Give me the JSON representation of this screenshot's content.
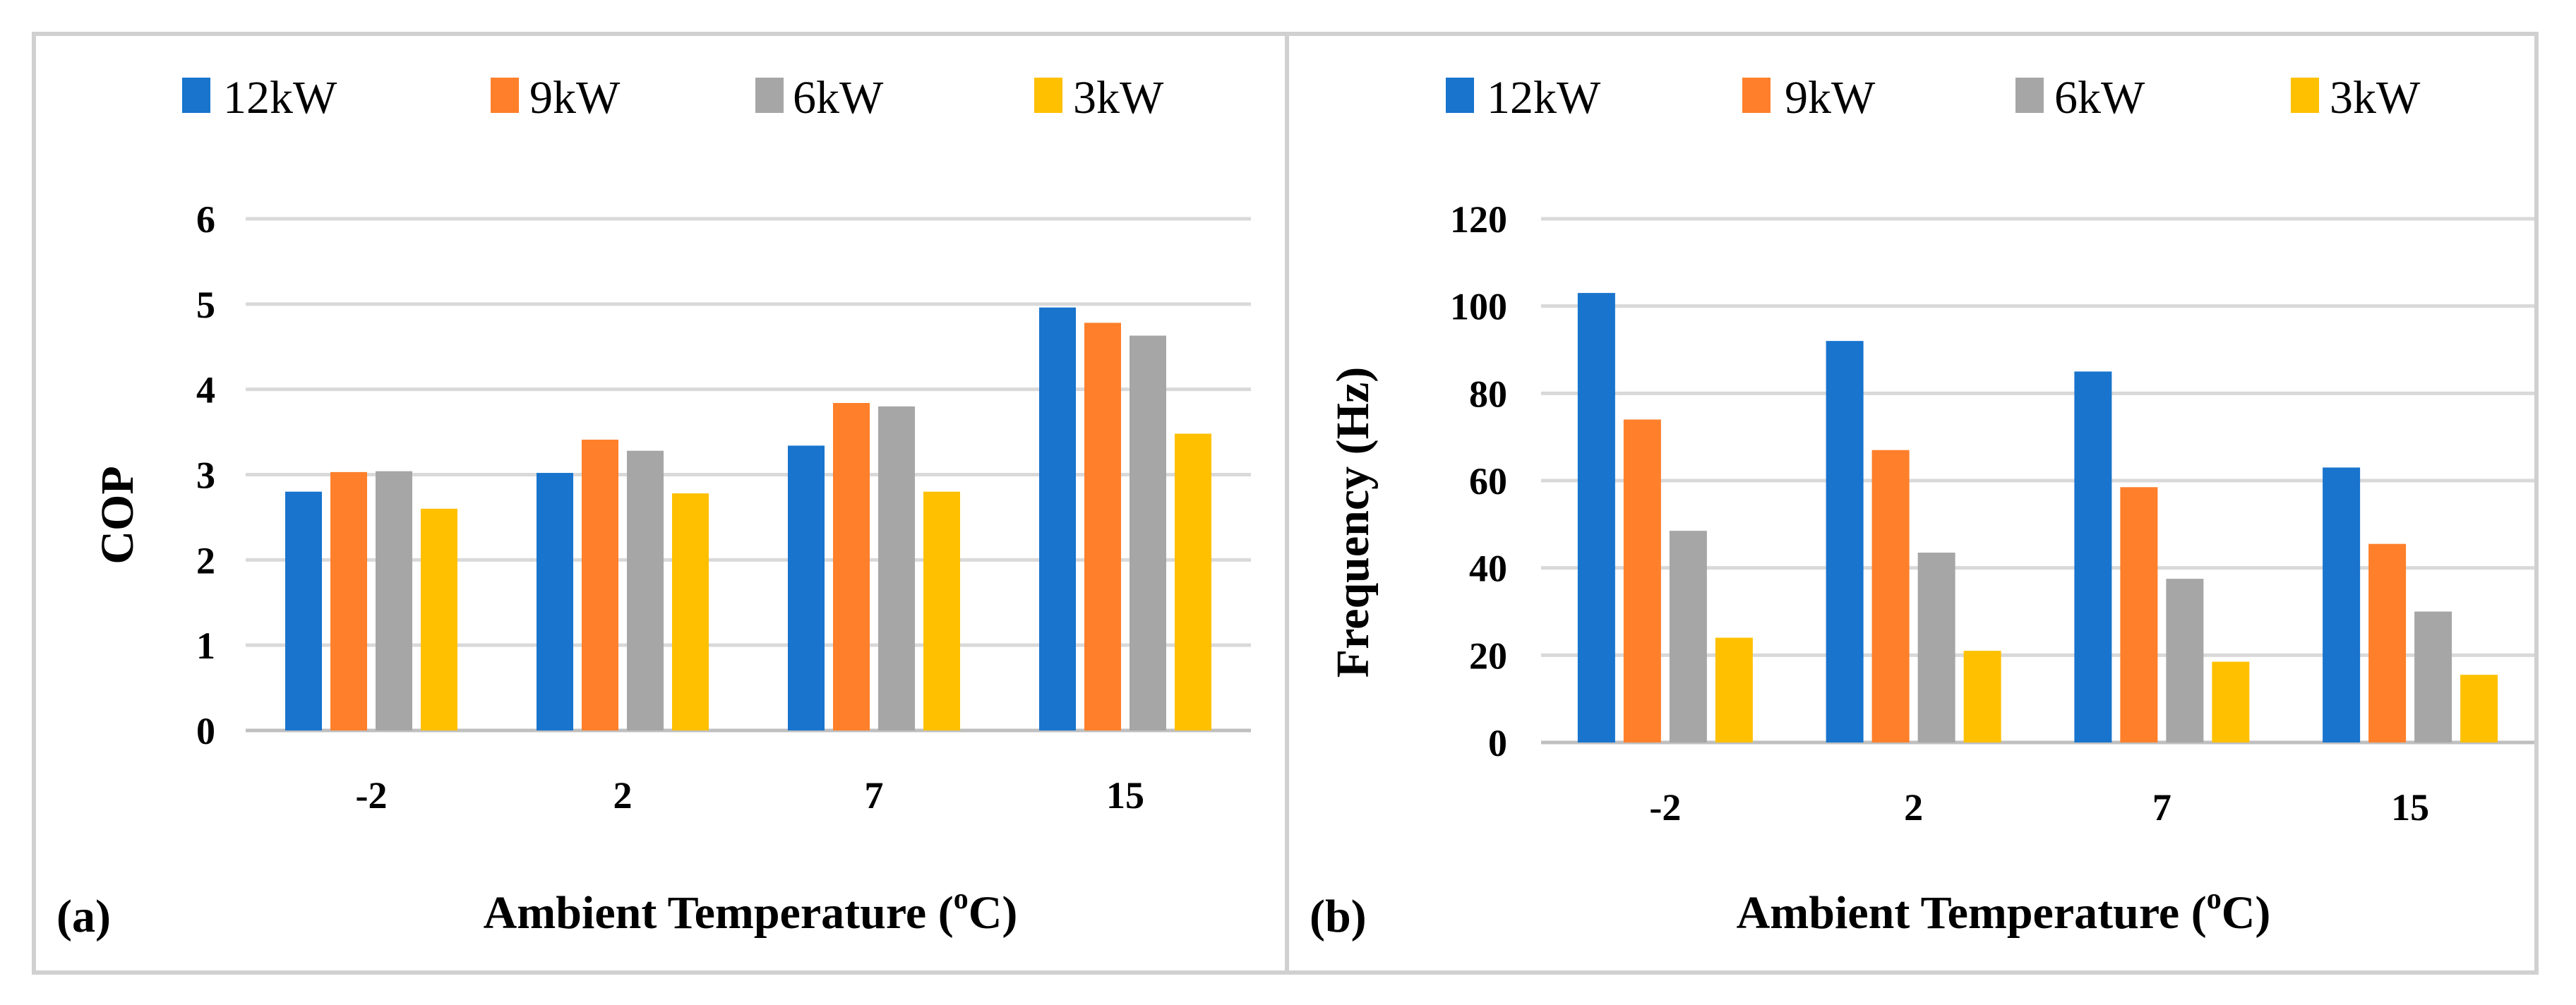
{
  "colors": {
    "12kW": "#1874CD",
    "9kW": "#FF7F2A",
    "6kW": "#A6A6A6",
    "3kW": "#FFC000",
    "grid": "#D9D9D9",
    "frame": "#D0D0D0"
  },
  "chart_data": [
    {
      "type": "bar",
      "panel_label": "(a)",
      "categories": [
        "-2",
        "2",
        "7",
        "15"
      ],
      "series": [
        {
          "name": "12kW",
          "values": [
            2.8,
            3.02,
            3.34,
            4.96
          ]
        },
        {
          "name": "9kW",
          "values": [
            3.03,
            3.41,
            3.84,
            4.78
          ]
        },
        {
          "name": "6kW",
          "values": [
            3.04,
            3.28,
            3.8,
            4.63
          ]
        },
        {
          "name": "3kW",
          "values": [
            2.6,
            2.78,
            2.8,
            3.48
          ]
        }
      ],
      "ylabel": "COP",
      "xlabel": "Ambient Temperature (",
      "xlabel_sup": "o",
      "xlabel_end": "C)",
      "ylim": [
        0,
        6
      ],
      "yticks": [
        "0",
        "1",
        "2",
        "3",
        "4",
        "5",
        "6"
      ],
      "legend_position": "top",
      "grid": true
    },
    {
      "type": "bar",
      "panel_label": "(b)",
      "categories": [
        "-2",
        "2",
        "7",
        "15"
      ],
      "series": [
        {
          "name": "12kW",
          "values": [
            103,
            92,
            85,
            63
          ]
        },
        {
          "name": "9kW",
          "values": [
            74,
            67,
            58.5,
            45.5
          ]
        },
        {
          "name": "6kW",
          "values": [
            48.5,
            43.5,
            37.5,
            30
          ]
        },
        {
          "name": "3kW",
          "values": [
            24,
            21,
            18.5,
            15.5
          ]
        }
      ],
      "ylabel": "Frequency (Hz)",
      "xlabel": "Ambient Temperature (",
      "xlabel_sup": "o",
      "xlabel_end": "C)",
      "ylim": [
        0,
        120
      ],
      "yticks": [
        "0",
        "20",
        "40",
        "60",
        "80",
        "100",
        "120"
      ],
      "legend_position": "top",
      "grid": true
    }
  ]
}
